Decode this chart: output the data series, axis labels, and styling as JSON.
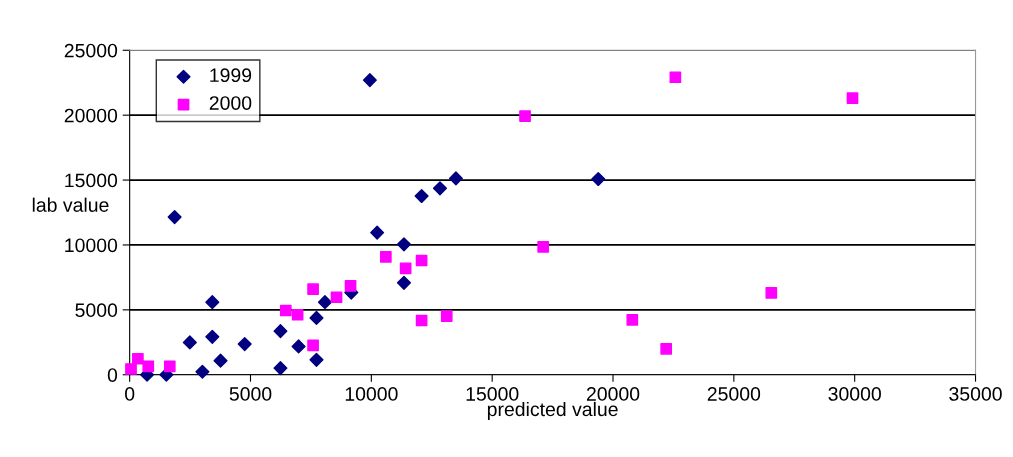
{
  "chart_data": {
    "type": "scatter",
    "xlabel": "predicted value",
    "ylabel": "lab value",
    "xlim": [
      0,
      35000
    ],
    "ylim": [
      0,
      25000
    ],
    "xticks": [
      0,
      5000,
      10000,
      15000,
      20000,
      25000,
      30000,
      35000
    ],
    "yticks": [
      0,
      5000,
      10000,
      15000,
      20000,
      25000
    ],
    "grid": "y",
    "legend": "top left",
    "series": [
      {
        "name": "1999",
        "color": "#000080",
        "marker": "diamond",
        "x": [
          1860,
          9940,
          19390,
          3420,
          2490,
          3420,
          3760,
          3010,
          1520,
          720,
          4760,
          6240,
          6240,
          6990,
          7730,
          7730,
          8080,
          9170,
          10240,
          11350,
          11350,
          12080,
          12840,
          13500
        ],
        "values": [
          12150,
          22700,
          15080,
          5590,
          2490,
          2920,
          1080,
          230,
          0,
          0,
          2360,
          3360,
          510,
          2180,
          4380,
          1150,
          5590,
          6330,
          10950,
          10050,
          7080,
          13770,
          14360,
          15130
        ]
      },
      {
        "name": "2000",
        "color": "#ff00ff",
        "marker": "square",
        "x": [
          55,
          340,
          770,
          1660,
          6460,
          6950,
          7590,
          7590,
          8560,
          9140,
          10600,
          11420,
          12080,
          12080,
          13120,
          16360,
          17110,
          22580,
          29910,
          26550,
          20800,
          22200
        ],
        "values": [
          440,
          1230,
          640,
          640,
          4950,
          4620,
          6590,
          2260,
          5970,
          6850,
          9080,
          8200,
          8800,
          4180,
          4510,
          19920,
          9850,
          22920,
          21310,
          6310,
          4230,
          2000
        ]
      }
    ]
  }
}
